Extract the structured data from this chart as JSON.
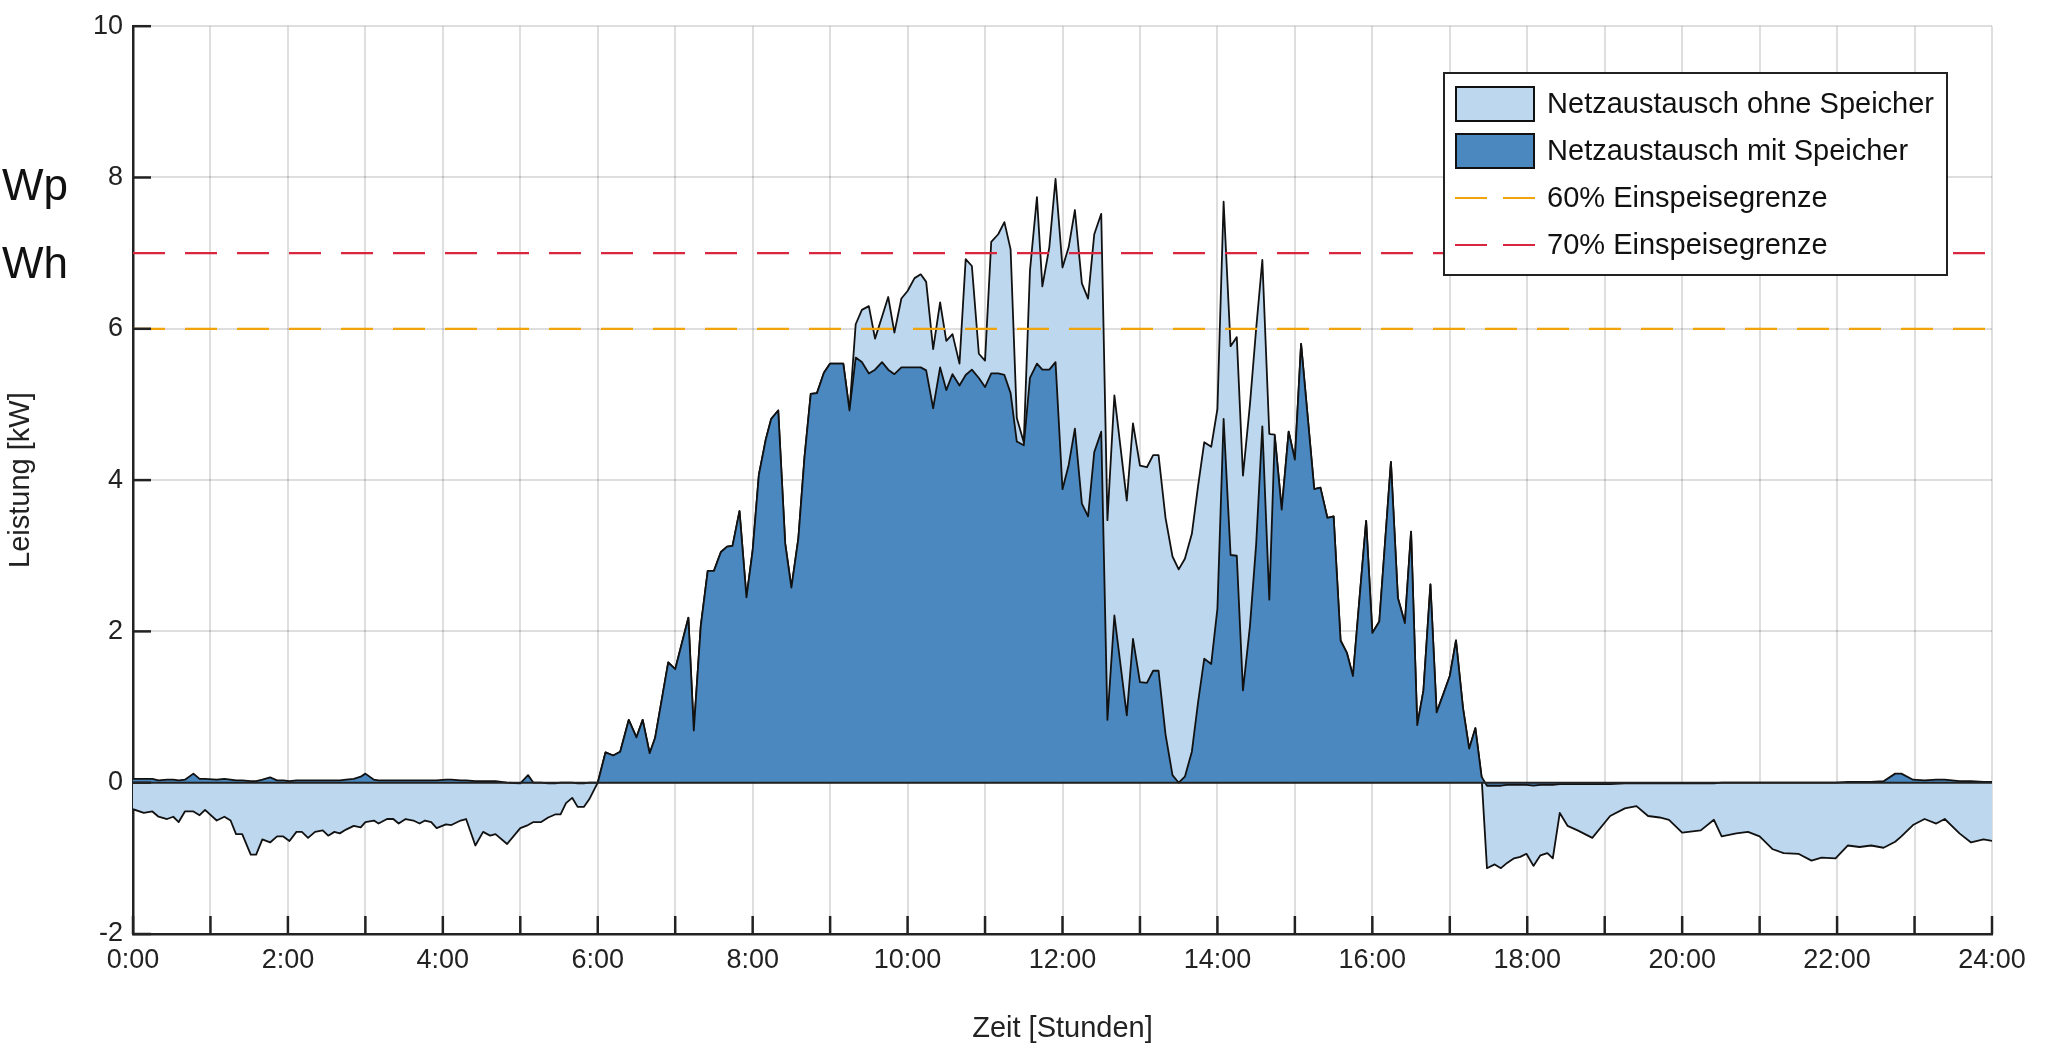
{
  "chart_data": {
    "type": "area",
    "xlabel": "Zeit [Stunden]",
    "ylabel": "Leistung [kW]",
    "annotations": [
      "Wp",
      "Wh"
    ],
    "x": [
      0,
      0.14,
      0.25,
      0.33,
      0.44,
      0.52,
      0.59,
      0.67,
      0.78,
      0.86,
      0.93,
      1.08,
      1.18,
      1.26,
      1.33,
      1.41,
      1.52,
      1.59,
      1.67,
      1.77,
      1.86,
      1.94,
      2.02,
      2.11,
      2.18,
      2.26,
      2.35,
      2.45,
      2.52,
      2.6,
      2.67,
      2.75,
      2.85,
      2.94,
      3.0,
      3.11,
      3.17,
      3.28,
      3.36,
      3.43,
      3.52,
      3.62,
      3.7,
      3.77,
      3.85,
      3.92,
      4.04,
      4.11,
      4.23,
      4.3,
      4.42,
      4.52,
      4.61,
      4.68,
      4.83,
      5.0,
      5.1,
      5.17,
      5.27,
      5.36,
      5.45,
      5.52,
      5.59,
      5.67,
      5.74,
      5.82,
      5.89,
      6.0,
      6.1,
      6.2,
      6.29,
      6.4,
      6.5,
      6.58,
      6.67,
      6.74,
      6.91,
      7.0,
      7.17,
      7.24,
      7.33,
      7.42,
      7.5,
      7.59,
      7.67,
      7.74,
      7.83,
      7.92,
      8.0,
      8.08,
      8.17,
      8.24,
      8.33,
      8.42,
      8.5,
      8.59,
      8.67,
      8.75,
      8.83,
      8.92,
      9.0,
      9.17,
      9.25,
      9.33,
      9.41,
      9.5,
      9.58,
      9.67,
      9.75,
      9.83,
      9.92,
      10.0,
      10.09,
      10.17,
      10.24,
      10.33,
      10.42,
      10.5,
      10.58,
      10.67,
      10.75,
      10.83,
      10.92,
      11.0,
      11.08,
      11.17,
      11.25,
      11.33,
      11.41,
      11.5,
      11.58,
      11.67,
      11.74,
      11.83,
      11.91,
      12.0,
      12.08,
      12.16,
      12.25,
      12.33,
      12.41,
      12.5,
      12.58,
      12.67,
      12.83,
      12.91,
      13.0,
      13.09,
      13.17,
      13.24,
      13.33,
      13.42,
      13.5,
      13.58,
      13.67,
      13.75,
      13.83,
      13.92,
      14.0,
      14.08,
      14.17,
      14.25,
      14.33,
      14.42,
      14.5,
      14.58,
      14.67,
      14.74,
      14.83,
      14.92,
      15.0,
      15.08,
      15.25,
      15.33,
      15.42,
      15.5,
      15.59,
      15.67,
      15.75,
      15.83,
      15.92,
      16.0,
      16.09,
      16.24,
      16.33,
      16.42,
      16.5,
      16.58,
      16.66,
      16.75,
      16.83,
      16.92,
      17.0,
      17.08,
      17.17,
      17.25,
      17.33,
      17.41,
      17.48,
      17.58,
      17.66,
      17.74,
      17.83,
      17.91,
      17.99,
      18.08,
      18.17,
      18.26,
      18.33,
      18.42,
      18.52,
      18.65,
      18.84,
      19.07,
      19.26,
      19.41,
      19.56,
      19.71,
      19.83,
      20.0,
      20.24,
      20.41,
      20.51,
      20.7,
      20.85,
      21.0,
      21.17,
      21.31,
      21.5,
      21.67,
      21.8,
      21.98,
      22.14,
      22.29,
      22.44,
      22.6,
      22.75,
      22.83,
      22.98,
      23.13,
      23.28,
      23.39,
      23.58,
      23.73,
      23.89,
      24.0
    ],
    "series": [
      {
        "name": "Netzaustausch ohne Speicher",
        "color": "#bdd7ee",
        "values": [
          -0.35,
          -0.4,
          -0.38,
          -0.45,
          -0.48,
          -0.45,
          -0.52,
          -0.38,
          -0.38,
          -0.43,
          -0.36,
          -0.5,
          -0.45,
          -0.5,
          -0.68,
          -0.68,
          -0.95,
          -0.95,
          -0.75,
          -0.79,
          -0.71,
          -0.71,
          -0.77,
          -0.65,
          -0.65,
          -0.73,
          -0.65,
          -0.63,
          -0.7,
          -0.65,
          -0.67,
          -0.62,
          -0.57,
          -0.59,
          -0.52,
          -0.5,
          -0.54,
          -0.48,
          -0.48,
          -0.54,
          -0.48,
          -0.5,
          -0.54,
          -0.5,
          -0.52,
          -0.6,
          -0.55,
          -0.56,
          -0.5,
          -0.48,
          -0.83,
          -0.65,
          -0.7,
          -0.68,
          -0.81,
          -0.6,
          -0.56,
          -0.52,
          -0.52,
          -0.46,
          -0.42,
          -0.42,
          -0.27,
          -0.2,
          -0.32,
          -0.32,
          -0.22,
          0,
          0.4,
          0.36,
          0.41,
          0.83,
          0.6,
          0.83,
          0.39,
          0.59,
          1.59,
          1.5,
          2.18,
          0.69,
          2.07,
          2.8,
          2.8,
          3.05,
          3.12,
          3.13,
          3.59,
          2.45,
          3.07,
          4.07,
          4.54,
          4.81,
          4.92,
          3.16,
          2.58,
          3.23,
          4.31,
          5.14,
          5.15,
          5.42,
          5.54,
          5.54,
          4.92,
          6.06,
          6.25,
          6.3,
          5.87,
          6.16,
          6.42,
          5.95,
          6.4,
          6.5,
          6.67,
          6.72,
          6.62,
          5.73,
          6.35,
          5.84,
          5.93,
          5.54,
          6.92,
          6.83,
          5.67,
          5.58,
          7.15,
          7.25,
          7.41,
          7.05,
          4.82,
          4.5,
          6.77,
          7.74,
          6.56,
          7.08,
          7.98,
          6.81,
          7.08,
          7.57,
          6.6,
          6.4,
          7.25,
          7.52,
          3.47,
          5.12,
          3.73,
          4.75,
          4.19,
          4.17,
          4.33,
          4.33,
          3.5,
          2.99,
          2.82,
          2.96,
          3.29,
          3.92,
          4.5,
          4.44,
          4.94,
          7.68,
          5.77,
          5.89,
          4.06,
          5.0,
          6.0,
          6.91,
          4.61,
          4.6,
          3.61,
          4.64,
          4.27,
          5.8,
          3.88,
          3.9,
          3.5,
          3.52,
          1.88,
          1.72,
          1.41,
          2.38,
          3.46,
          1.98,
          2.13,
          4.24,
          2.44,
          2.11,
          3.32,
          0.76,
          1.22,
          2.62,
          0.93,
          1.18,
          1.41,
          1.88,
          0.99,
          0.45,
          0.72,
          0.08,
          -1.13,
          -1.08,
          -1.13,
          -1.06,
          -1.0,
          -0.98,
          -0.94,
          -1.1,
          -0.96,
          -0.93,
          -1.0,
          -0.4,
          -0.57,
          -0.63,
          -0.73,
          -0.44,
          -0.34,
          -0.31,
          -0.44,
          -0.46,
          -0.49,
          -0.66,
          -0.63,
          -0.49,
          -0.71,
          -0.67,
          -0.65,
          -0.71,
          -0.88,
          -0.93,
          -0.94,
          -1.03,
          -0.99,
          -1.0,
          -0.83,
          -0.85,
          -0.83,
          -0.86,
          -0.78,
          -0.71,
          -0.56,
          -0.48,
          -0.54,
          -0.48,
          -0.67,
          -0.79,
          -0.75,
          -0.77
        ]
      },
      {
        "name": "Netzaustausch mit Speicher",
        "color": "#4a88bf",
        "values": [
          0.05,
          0.05,
          0.05,
          0.03,
          0.04,
          0.04,
          0.03,
          0.04,
          0.12,
          0.05,
          0.05,
          0.04,
          0.05,
          0.04,
          0.03,
          0.03,
          0.02,
          0.02,
          0.04,
          0.07,
          0.03,
          0.03,
          0.02,
          0.03,
          0.03,
          0.03,
          0.03,
          0.03,
          0.03,
          0.03,
          0.03,
          0.04,
          0.05,
          0.08,
          0.12,
          0.04,
          0.03,
          0.03,
          0.03,
          0.03,
          0.03,
          0.03,
          0.03,
          0.03,
          0.03,
          0.03,
          0.04,
          0.04,
          0.03,
          0.03,
          0.02,
          0.02,
          0.02,
          0.02,
          0,
          -0.01,
          0.1,
          0,
          0,
          -0.01,
          -0.01,
          0,
          0,
          0,
          -0.01,
          -0.01,
          0,
          0,
          0.4,
          0.36,
          0.41,
          0.83,
          0.6,
          0.83,
          0.39,
          0.59,
          1.59,
          1.5,
          2.18,
          0.69,
          2.07,
          2.8,
          2.8,
          3.05,
          3.12,
          3.13,
          3.59,
          2.45,
          3.07,
          4.07,
          4.54,
          4.81,
          4.92,
          3.16,
          2.58,
          3.23,
          4.31,
          5.14,
          5.15,
          5.42,
          5.54,
          5.54,
          4.92,
          5.62,
          5.56,
          5.41,
          5.46,
          5.56,
          5.46,
          5.4,
          5.49,
          5.49,
          5.49,
          5.49,
          5.45,
          4.95,
          5.49,
          5.19,
          5.4,
          5.25,
          5.39,
          5.46,
          5.35,
          5.23,
          5.41,
          5.41,
          5.39,
          5.15,
          4.51,
          4.46,
          5.35,
          5.54,
          5.46,
          5.46,
          5.56,
          3.88,
          4.2,
          4.68,
          3.69,
          3.52,
          4.37,
          4.64,
          0.83,
          2.21,
          0.89,
          1.9,
          1.33,
          1.32,
          1.48,
          1.48,
          0.64,
          0.1,
          0,
          0.08,
          0.41,
          1.06,
          1.64,
          1.57,
          2.3,
          4.81,
          3.01,
          3.0,
          1.22,
          2.07,
          3.15,
          4.71,
          2.42,
          4.58,
          3.61,
          4.64,
          4.27,
          5.8,
          3.88,
          3.9,
          3.5,
          3.52,
          1.88,
          1.72,
          1.41,
          2.38,
          3.46,
          1.98,
          2.13,
          4.24,
          2.44,
          2.11,
          3.32,
          0.76,
          1.22,
          2.62,
          0.93,
          1.18,
          1.41,
          1.88,
          0.99,
          0.45,
          0.72,
          0.08,
          -0.04,
          -0.04,
          -0.04,
          -0.03,
          -0.03,
          -0.03,
          -0.03,
          -0.04,
          -0.03,
          -0.03,
          -0.03,
          -0.02,
          -0.02,
          -0.02,
          -0.02,
          -0.02,
          -0.01,
          -0.01,
          -0.01,
          -0.01,
          -0.01,
          -0.01,
          -0.01,
          -0.01,
          0,
          0,
          0,
          0,
          0,
          0,
          0,
          0,
          0,
          0,
          0.01,
          0.01,
          0.01,
          0.02,
          0.12,
          0.12,
          0.04,
          0.03,
          0.04,
          0.04,
          0.02,
          0.02,
          0.01,
          0.01
        ]
      }
    ],
    "ref_lines": [
      {
        "axis": "y",
        "value": 6,
        "label": "60% Einspeisegrenze",
        "color": "#f0a30a",
        "line_style": "dashed"
      },
      {
        "axis": "y",
        "value": 7,
        "label": "70% Einspeisegrenze",
        "color": "#d7263d",
        "line_style": "dashed"
      }
    ],
    "xlim": [
      0,
      24
    ],
    "xticks": [
      {
        "value": 0,
        "label": "0:00"
      },
      {
        "value": 1,
        "label": null
      },
      {
        "value": 2,
        "label": "2:00"
      },
      {
        "value": 3,
        "label": null
      },
      {
        "value": 4,
        "label": "4:00"
      },
      {
        "value": 5,
        "label": null
      },
      {
        "value": 6,
        "label": "6:00"
      },
      {
        "value": 7,
        "label": null
      },
      {
        "value": 8,
        "label": "8:00"
      },
      {
        "value": 9,
        "label": null
      },
      {
        "value": 10,
        "label": "10:00"
      },
      {
        "value": 11,
        "label": null
      },
      {
        "value": 12,
        "label": "12:00"
      },
      {
        "value": 13,
        "label": null
      },
      {
        "value": 14,
        "label": "14:00"
      },
      {
        "value": 15,
        "label": null
      },
      {
        "value": 16,
        "label": "16:00"
      },
      {
        "value": 17,
        "label": null
      },
      {
        "value": 18,
        "label": "18:00"
      },
      {
        "value": 19,
        "label": null
      },
      {
        "value": 20,
        "label": "20:00"
      },
      {
        "value": 21,
        "label": null
      },
      {
        "value": 22,
        "label": "22:00"
      },
      {
        "value": 23,
        "label": null
      },
      {
        "value": 24,
        "label": "24:00"
      }
    ],
    "ylim": [
      -2,
      10
    ],
    "yticks": [
      -2,
      0,
      2,
      4,
      6,
      8,
      10
    ],
    "grid": true,
    "legend": "top right"
  }
}
